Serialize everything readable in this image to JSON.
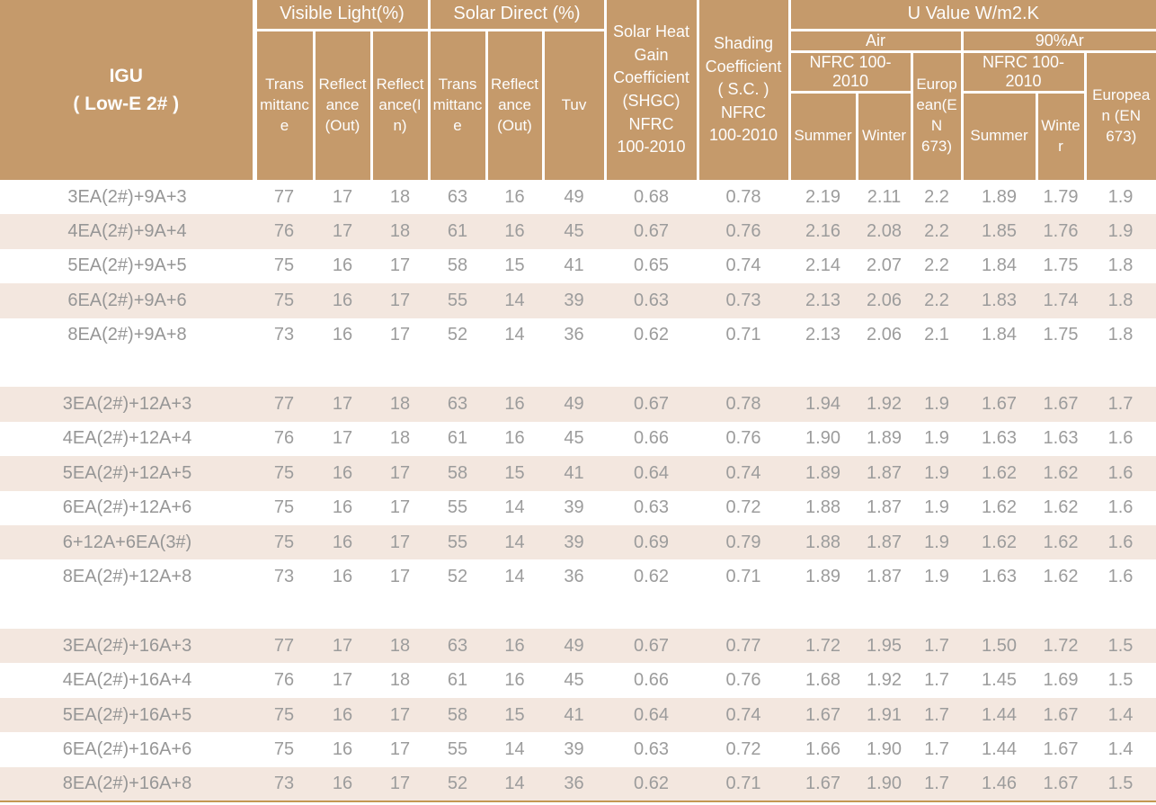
{
  "colors": {
    "header_bg": "#C59A6B",
    "header_text": "#FDFDFD",
    "row_shade": "#F3E7DF",
    "data_text": "#9C9C9C",
    "bottom_rule": "#C49752",
    "grid_line": "#FFFFFF"
  },
  "table": {
    "header": {
      "igu_line1": "IGU",
      "igu_line2": "( Low-E 2# )",
      "visible_light": "Visible Light(%)",
      "solar_direct": "Solar  Direct (%)",
      "transmittance": "Transmittance",
      "reflectance_out": "Reflectance (Out)",
      "reflectance_in": "Reflectance(In)",
      "solar_transmittance": "Transmittance",
      "solar_reflectance_out": "Reflectance (Out)",
      "tuv": "Tuv",
      "shgc": "Solar Heat Gain Coefficient (SHGC) NFRC 100-2010",
      "shading": "Shading Coefficient ( S.C. ) NFRC 100-2010",
      "u_value": "U Value W/m2.K",
      "air": "Air",
      "argon": "90%Ar",
      "nfrc_air": "NFRC 100-2010",
      "nfrc_argon": "NFRC 100-2010",
      "european_air": "European(EN 673)",
      "european_argon": "European (EN 673)",
      "summer_air": "Summer",
      "winter_air": "Winter",
      "summer_argon": "Summer",
      "winter_argon": "Winter"
    },
    "rows": [
      {
        "label": "3EA(2#)+9A+3",
        "shaded": false,
        "values": [
          "77",
          "17",
          "18",
          "63",
          "16",
          "49",
          "0.68",
          "0.78",
          "2.19",
          "2.11",
          "2.2",
          "1.89",
          "1.79",
          "1.9"
        ]
      },
      {
        "label": "4EA(2#)+9A+4",
        "shaded": true,
        "values": [
          "76",
          "17",
          "18",
          "61",
          "16",
          "45",
          "0.67",
          "0.76",
          "2.16",
          "2.08",
          "2.2",
          "1.85",
          "1.76",
          "1.9"
        ]
      },
      {
        "label": "5EA(2#)+9A+5",
        "shaded": false,
        "values": [
          "75",
          "16",
          "17",
          "58",
          "15",
          "41",
          "0.65",
          "0.74",
          "2.14",
          "2.07",
          "2.2",
          "1.84",
          "1.75",
          "1.8"
        ]
      },
      {
        "label": "6EA(2#)+9A+6",
        "shaded": true,
        "values": [
          "75",
          "16",
          "17",
          "55",
          "14",
          "39",
          "0.63",
          "0.73",
          "2.13",
          "2.06",
          "2.2",
          "1.83",
          "1.74",
          "1.8"
        ]
      },
      {
        "label": "8EA(2#)+9A+8",
        "shaded": false,
        "values": [
          "73",
          "16",
          "17",
          "52",
          "14",
          "36",
          "0.62",
          "0.71",
          "2.13",
          "2.06",
          "2.1",
          "1.84",
          "1.75",
          "1.8"
        ]
      },
      null,
      {
        "label": "3EA(2#)+12A+3",
        "shaded": true,
        "values": [
          "77",
          "17",
          "18",
          "63",
          "16",
          "49",
          "0.67",
          "0.78",
          "1.94",
          "1.92",
          "1.9",
          "1.67",
          "1.67",
          "1.7"
        ]
      },
      {
        "label": "4EA(2#)+12A+4",
        "shaded": false,
        "values": [
          "76",
          "17",
          "18",
          "61",
          "16",
          "45",
          "0.66",
          "0.76",
          "1.90",
          "1.89",
          "1.9",
          "1.63",
          "1.63",
          "1.6"
        ]
      },
      {
        "label": "5EA(2#)+12A+5",
        "shaded": true,
        "values": [
          "75",
          "16",
          "17",
          "58",
          "15",
          "41",
          "0.64",
          "0.74",
          "1.89",
          "1.87",
          "1.9",
          "1.62",
          "1.62",
          "1.6"
        ]
      },
      {
        "label": "6EA(2#)+12A+6",
        "shaded": false,
        "values": [
          "75",
          "16",
          "17",
          "55",
          "14",
          "39",
          "0.63",
          "0.72",
          "1.88",
          "1.87",
          "1.9",
          "1.62",
          "1.62",
          "1.6"
        ]
      },
      {
        "label": "6+12A+6EA(3#)",
        "shaded": true,
        "values": [
          "75",
          "16",
          "17",
          "55",
          "14",
          "39",
          "0.69",
          "0.79",
          "1.88",
          "1.87",
          "1.9",
          "1.62",
          "1.62",
          "1.6"
        ]
      },
      {
        "label": "8EA(2#)+12A+8",
        "shaded": false,
        "values": [
          "73",
          "16",
          "17",
          "52",
          "14",
          "36",
          "0.62",
          "0.71",
          "1.89",
          "1.87",
          "1.9",
          "1.63",
          "1.62",
          "1.6"
        ]
      },
      null,
      {
        "label": "3EA(2#)+16A+3",
        "shaded": true,
        "values": [
          "77",
          "17",
          "18",
          "63",
          "16",
          "49",
          "0.67",
          "0.77",
          "1.72",
          "1.95",
          "1.7",
          "1.50",
          "1.72",
          "1.5"
        ]
      },
      {
        "label": "4EA(2#)+16A+4",
        "shaded": false,
        "values": [
          "76",
          "17",
          "18",
          "61",
          "16",
          "45",
          "0.66",
          "0.76",
          "1.68",
          "1.92",
          "1.7",
          "1.45",
          "1.69",
          "1.5"
        ]
      },
      {
        "label": "5EA(2#)+16A+5",
        "shaded": true,
        "values": [
          "75",
          "16",
          "17",
          "58",
          "15",
          "41",
          "0.64",
          "0.74",
          "1.67",
          "1.91",
          "1.7",
          "1.44",
          "1.67",
          "1.4"
        ]
      },
      {
        "label": "6EA(2#)+16A+6",
        "shaded": false,
        "values": [
          "75",
          "16",
          "17",
          "55",
          "14",
          "39",
          "0.63",
          "0.72",
          "1.66",
          "1.90",
          "1.7",
          "1.44",
          "1.67",
          "1.4"
        ]
      },
      {
        "label": "8EA(2#)+16A+8",
        "shaded": true,
        "values": [
          "73",
          "16",
          "17",
          "52",
          "14",
          "36",
          "0.62",
          "0.71",
          "1.67",
          "1.90",
          "1.7",
          "1.46",
          "1.67",
          "1.5"
        ]
      }
    ]
  }
}
